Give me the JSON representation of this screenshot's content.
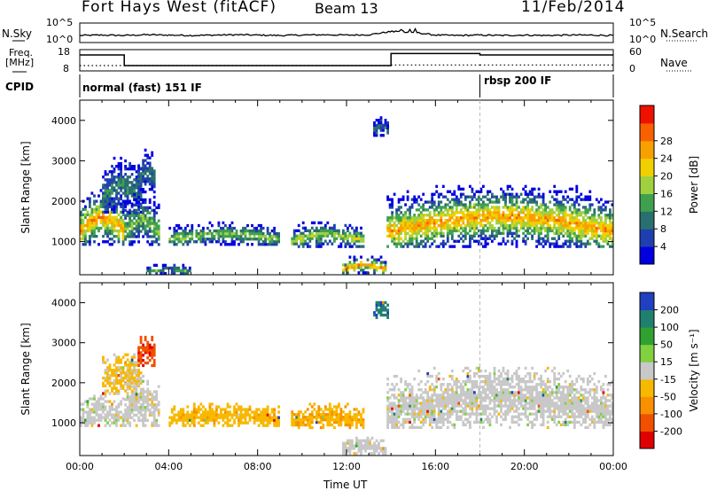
{
  "header": {
    "station": "Fort Hays West (fitACF)",
    "beam": "Beam 13",
    "date": "11/Feb/2014"
  },
  "left_labels": {
    "nsky": "N.Sky",
    "freq_line1": "Freq.",
    "freq_line2": "[MHz]",
    "cpid": "CPID"
  },
  "right_labels": {
    "nsearch": "N.Search",
    "nave": "Nave"
  },
  "noise_axis": {
    "left_top": "10^5",
    "left_bottom": "10^0",
    "right_top": "10^5",
    "right_bottom": "10^0"
  },
  "freq_axis": {
    "left_top": "18",
    "left_bottom": "8",
    "right_top": "60",
    "right_bottom": "0"
  },
  "cpid_segments": [
    {
      "label": "normal (fast) 151 IF",
      "start_hour": 0,
      "end_hour": 18
    },
    {
      "label": "rbsp 200 IF",
      "start_hour": 18,
      "end_hour": 24
    }
  ],
  "chart_data": [
    {
      "type": "line",
      "name": "noise-series",
      "x_range": [
        0,
        24
      ],
      "nsky_description_y": [
        1.5,
        1.6,
        1.5,
        1.7,
        1.6,
        1.5,
        1.6,
        1.7,
        1.6,
        1.5,
        1.6,
        1.7,
        1.6,
        1.7,
        2.6,
        2.4,
        1.6,
        1.5,
        1.6,
        1.5,
        1.6,
        1.5,
        1.6,
        1.6,
        1.5
      ],
      "frequency_mhz": [
        {
          "x0": 0,
          "x1": 2,
          "y": 16
        },
        {
          "x0": 2,
          "x1": 14,
          "y": 10
        },
        {
          "x0": 14,
          "x1": 18,
          "y": 16.8
        },
        {
          "x0": 18,
          "x1": 24,
          "y": 16
        }
      ],
      "nave": [
        {
          "x0": 0,
          "x1": 2,
          "y": 12
        },
        {
          "x0": 2,
          "x1": 14,
          "y": 12
        },
        {
          "x0": 14,
          "x1": 18,
          "y": 14
        },
        {
          "x0": 18,
          "x1": 24,
          "y": 14
        }
      ]
    },
    {
      "type": "heatmap",
      "name": "power",
      "ylabel": "Slant Range [km]",
      "x_range": [
        0,
        24
      ],
      "y_range": [
        180,
        4500
      ],
      "yticks": [
        1000,
        2000,
        3000,
        4000
      ],
      "colorbar_label": "Power [dB]",
      "colorbar_ticks": [
        "4",
        "8",
        "12",
        "16",
        "20",
        "24",
        "28"
      ],
      "colorbar_range": [
        0,
        30
      ],
      "colors": [
        "#0000e0",
        "#1f3fb0",
        "#2a6f6f",
        "#3fa050",
        "#a0d040",
        "#f0d000",
        "#f8a000",
        "#f86000",
        "#f01000"
      ],
      "echo_regions": [
        {
          "x0": 0.0,
          "x1": 2.0,
          "r0": 900,
          "r1": 2300,
          "peak": 22
        },
        {
          "x0": 1.0,
          "x1": 2.8,
          "r0": 1700,
          "r1": 3100,
          "peak": 10
        },
        {
          "x0": 2.0,
          "x1": 3.6,
          "r0": 900,
          "r1": 2200,
          "peak": 14
        },
        {
          "x0": 2.6,
          "x1": 3.4,
          "r0": 2200,
          "r1": 3300,
          "peak": 8
        },
        {
          "x0": 4.0,
          "x1": 9.0,
          "r0": 900,
          "r1": 1500,
          "peak": 14
        },
        {
          "x0": 9.5,
          "x1": 12.8,
          "r0": 850,
          "r1": 1500,
          "peak": 16
        },
        {
          "x0": 11.8,
          "x1": 13.8,
          "r0": 200,
          "r1": 650,
          "peak": 22
        },
        {
          "x0": 3.0,
          "x1": 5.0,
          "r0": 180,
          "r1": 450,
          "peak": 12
        },
        {
          "x0": 13.2,
          "x1": 13.9,
          "r0": 3600,
          "r1": 4100,
          "peak": 8
        },
        {
          "x0": 13.8,
          "x1": 24.0,
          "r0": 850,
          "r1": 2400,
          "peak": 22
        }
      ]
    },
    {
      "type": "heatmap",
      "name": "velocity",
      "ylabel": "Slant Range [km]",
      "x_range": [
        0,
        24
      ],
      "y_range": [
        180,
        4500
      ],
      "yticks": [
        1000,
        2000,
        3000,
        4000
      ],
      "xticks": [
        "00:00",
        "04:00",
        "08:00",
        "12:00",
        "16:00",
        "20:00",
        "00:00"
      ],
      "xlabel": "Time UT",
      "colorbar_label": "Velocity [m s⁻¹]",
      "colorbar_ticks": [
        "-200",
        "-100",
        "-50",
        "-15",
        "15",
        "50",
        "100",
        "200"
      ],
      "colorbar_range": [
        -250,
        250
      ],
      "colors": [
        "#e00000",
        "#f05000",
        "#f89000",
        "#f8b800",
        "#c8c8c8",
        "#80d040",
        "#30a030",
        "#208070",
        "#2040c0"
      ],
      "echo_regions": [
        {
          "x0": 0.0,
          "x1": 2.0,
          "r0": 900,
          "r1": 1700,
          "v": 0
        },
        {
          "x0": 1.0,
          "x1": 2.8,
          "r0": 1700,
          "r1": 2800,
          "v": -40
        },
        {
          "x0": 2.0,
          "x1": 3.6,
          "r0": 900,
          "r1": 2200,
          "v": 0
        },
        {
          "x0": 2.6,
          "x1": 3.4,
          "r0": 2400,
          "r1": 3300,
          "v": -180
        },
        {
          "x0": 4.0,
          "x1": 9.0,
          "r0": 900,
          "r1": 1500,
          "v": -60
        },
        {
          "x0": 9.5,
          "x1": 12.8,
          "r0": 850,
          "r1": 1500,
          "v": -70
        },
        {
          "x0": 11.8,
          "x1": 13.8,
          "r0": 200,
          "r1": 650,
          "v": 0
        },
        {
          "x0": 13.2,
          "x1": 13.9,
          "r0": 3600,
          "r1": 4100,
          "v": 180
        },
        {
          "x0": 13.8,
          "x1": 24.0,
          "r0": 850,
          "r1": 2400,
          "v": 0
        }
      ]
    }
  ]
}
